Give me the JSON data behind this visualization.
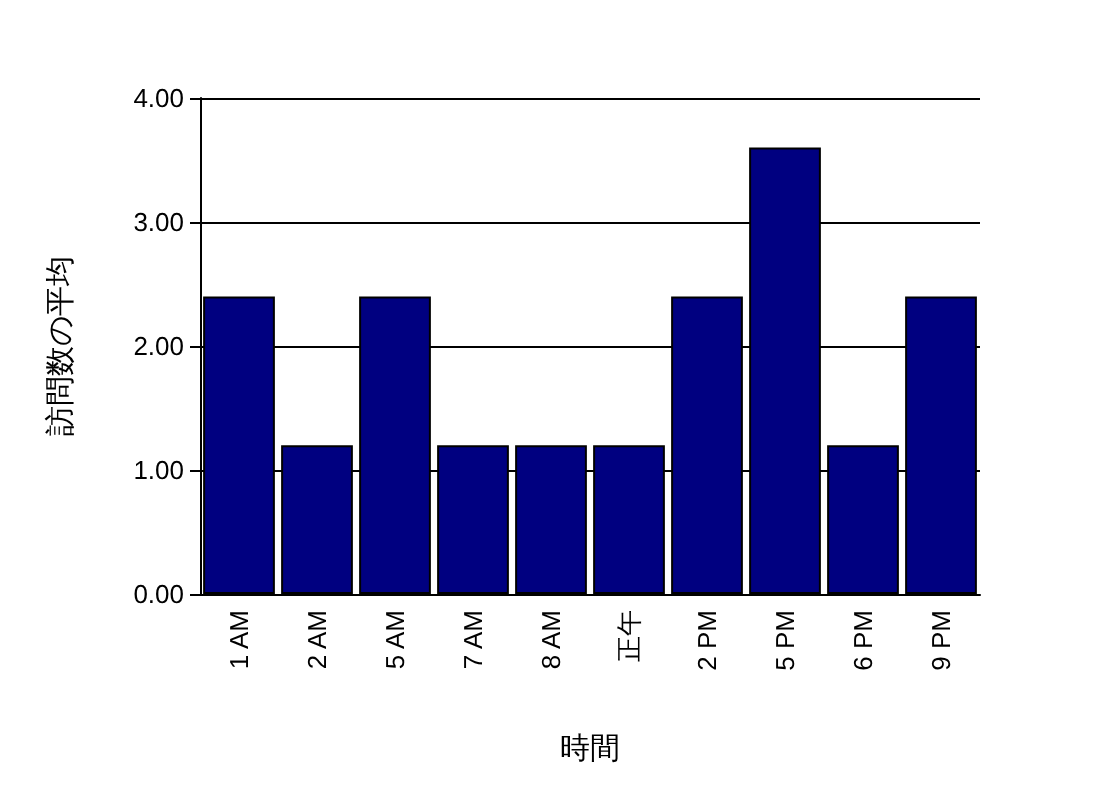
{
  "chart_data": {
    "type": "bar",
    "xlabel": "時間",
    "ylabel": "訪問数の平均",
    "categories": [
      "1 AM",
      "2 AM",
      "5 AM",
      "7 AM",
      "8 AM",
      "正午",
      "2 PM",
      "5 PM",
      "6 PM",
      "9 PM"
    ],
    "values": [
      2.4,
      1.2,
      2.4,
      1.2,
      1.2,
      1.2,
      2.4,
      3.6,
      1.2,
      2.4
    ],
    "color": "#000080",
    "ylim": [
      0,
      4
    ],
    "yticks": [
      {
        "value": 0,
        "label": "0.00"
      },
      {
        "value": 1,
        "label": "1.00"
      },
      {
        "value": 2,
        "label": "2.00"
      },
      {
        "value": 3,
        "label": "3.00"
      },
      {
        "value": 4,
        "label": "4.00"
      }
    ],
    "grid": "y"
  }
}
